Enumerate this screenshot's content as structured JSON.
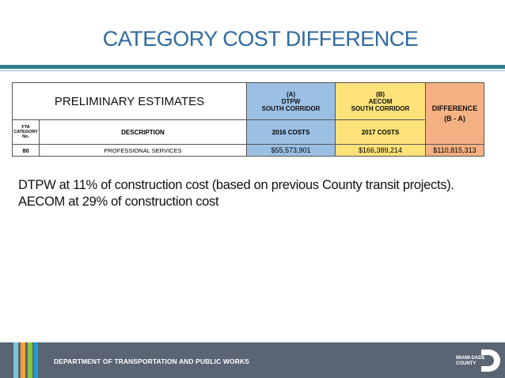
{
  "slide": {
    "title": "CATEGORY COST DIFFERENCE"
  },
  "table": {
    "preliminary_label": "PRELIMINARY ESTIMATES",
    "col_a": {
      "tag": "(A)",
      "org": "DTPW",
      "corridor": "SOUTH CORRIDOR",
      "cost_label": "2016 COSTS"
    },
    "col_b": {
      "tag": "(B)",
      "org": "AECOM",
      "corridor": "SOUTH CORRIDOR",
      "cost_label": "2017 COSTS"
    },
    "col_diff": {
      "label": "DIFFERENCE",
      "formula": "(B - A)"
    },
    "fta_header": {
      "line1": "FTA",
      "line2": "CATEGORY",
      "line3": "No."
    },
    "description_header": "DESCRIPTION",
    "rows": [
      {
        "category": "80",
        "description": "PROFESSIONAL SERVICES",
        "cost_a": "$55,573,901",
        "cost_b": "$166,389,214",
        "difference": "$110,815,313"
      }
    ]
  },
  "notes": {
    "line1": "DTPW at 11% of construction cost (based on previous County transit projects).",
    "line2": "AECOM at 29% of construction cost"
  },
  "footer": {
    "department": "DEPARTMENT OF TRANSPORTATION AND PUBLIC WORKS",
    "logo_line1": "MIAMI-DADE",
    "logo_line2": "COUNTY"
  },
  "colors": {
    "title": "#2f6aa0",
    "rule": "#2f7f8c",
    "col_a_fill": "#9cc0e4",
    "col_b_fill": "#fde27a",
    "col_diff_fill": "#f5b183",
    "footer_bg": "#596572"
  }
}
